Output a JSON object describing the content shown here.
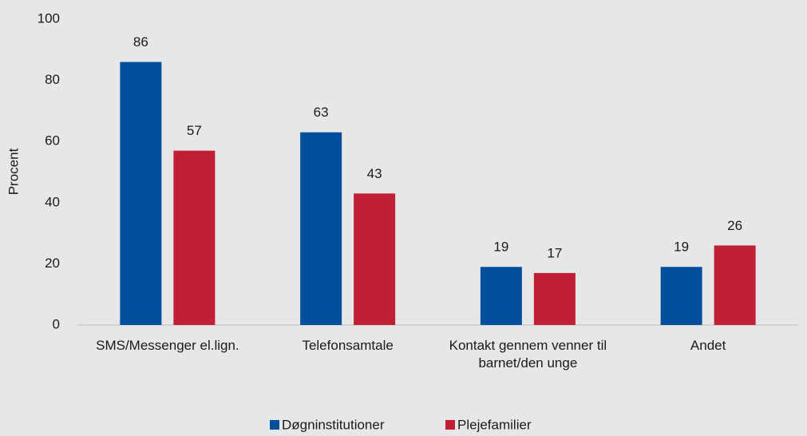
{
  "chart_data": {
    "type": "bar",
    "categories": [
      "SMS/Messenger el.lign.",
      "Telefonsamtale",
      "Kontakt gennem venner til barnet/den unge",
      "Andet"
    ],
    "series": [
      {
        "name": "Døgninstitutioner",
        "color": "#034f9b",
        "values": [
          86,
          63,
          19,
          19
        ]
      },
      {
        "name": "Plejefamilier",
        "color": "#c01f35",
        "values": [
          57,
          43,
          17,
          26
        ]
      }
    ],
    "y_label": "Procent",
    "ylim": [
      0,
      100
    ],
    "yticks": [
      0,
      20,
      40,
      60,
      80,
      100
    ],
    "grid": false,
    "legend": "bottom"
  }
}
